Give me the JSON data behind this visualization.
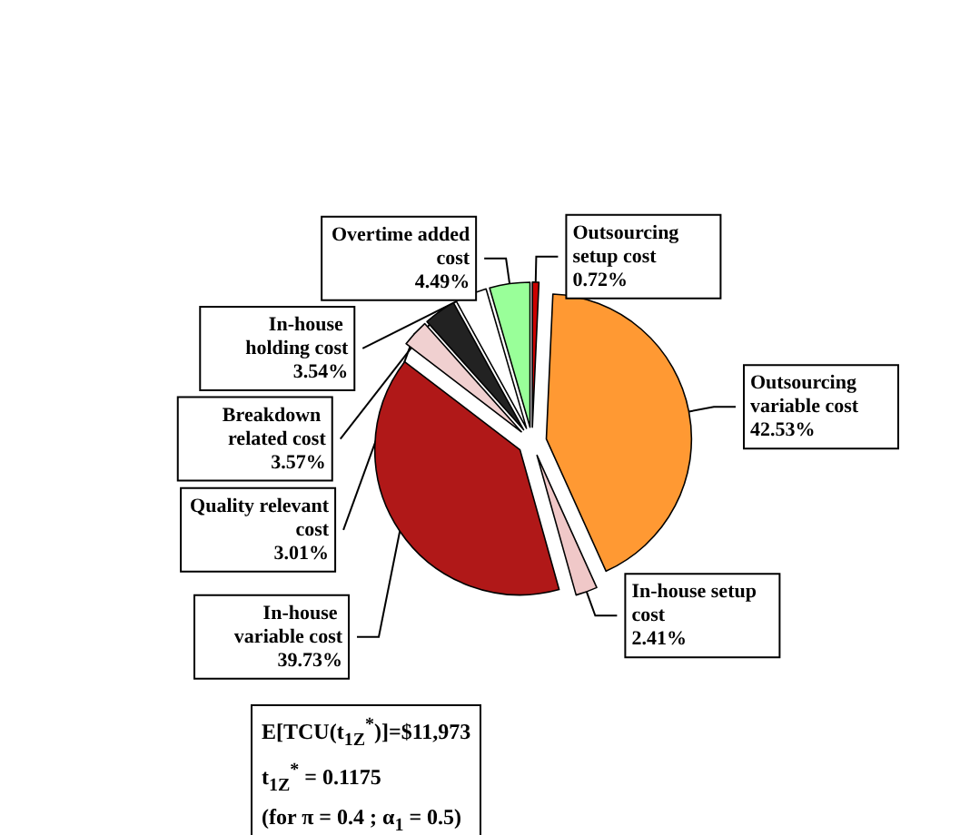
{
  "chart_data": {
    "type": "pie",
    "categories": [
      "Outsourcing setup cost",
      "Outsourcing variable cost",
      "In-house setup cost",
      "In-house variable cost",
      "Quality relevant cost",
      "Breakdown related cost",
      "In-house holding cost",
      "Overtime added cost"
    ],
    "values": [
      0.72,
      42.53,
      2.41,
      39.73,
      3.01,
      3.57,
      3.54,
      4.49
    ],
    "value_labels": [
      "0.72%",
      "42.53%",
      "2.41%",
      "39.73%",
      "3.01%",
      "3.57%",
      "3.54%",
      "4.49%"
    ],
    "colors": [
      "#cc0000",
      "#ff9933",
      "#f0c8c8",
      "#b01818",
      "#f0d0d0",
      "#222222",
      "#ffffff",
      "#99ff99"
    ],
    "annotations": [
      "E[TCU(t$_{1Z}$$^{*}$)]=$11,973",
      "t$_{1Z}$$^{*}$ = 0.1175",
      "(for π = 0.4 ; α$_{1}$ = 0.5)"
    ]
  }
}
